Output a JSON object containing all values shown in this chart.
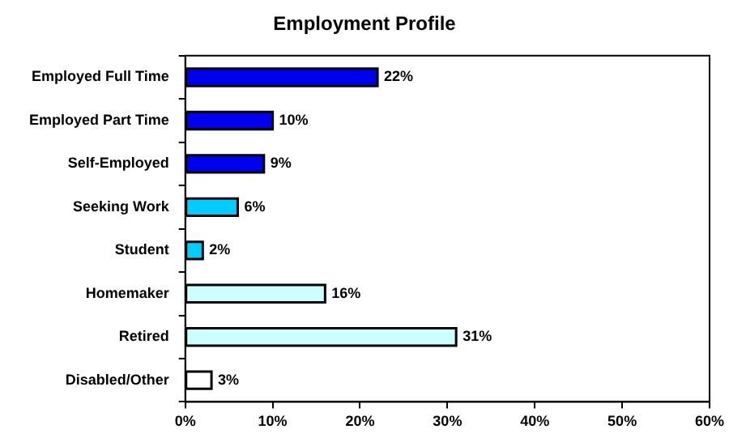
{
  "chart_data": {
    "type": "bar",
    "orientation": "horizontal",
    "title": "Employment Profile",
    "categories": [
      "Employed Full Time",
      "Employed Part Time",
      "Self-Employed",
      "Seeking Work",
      "Student",
      "Homemaker",
      "Retired",
      "Disabled/Other"
    ],
    "values": [
      22,
      10,
      9,
      6,
      2,
      16,
      31,
      3
    ],
    "colors": [
      "#0000ee",
      "#0000ee",
      "#0000ee",
      "#00ccff",
      "#00ccff",
      "#ccffff",
      "#ccffff",
      "#ffffff"
    ],
    "value_labels": [
      "22%",
      "10%",
      "9%",
      "6%",
      "2%",
      "16%",
      "31%",
      "3%"
    ],
    "xlim": [
      0,
      60
    ],
    "xticks": [
      {
        "value": 0,
        "label": "0%"
      },
      {
        "value": 10,
        "label": "10%"
      },
      {
        "value": 20,
        "label": "20%"
      },
      {
        "value": 30,
        "label": "30%"
      },
      {
        "value": 40,
        "label": "40%"
      },
      {
        "value": 50,
        "label": "50%"
      },
      {
        "value": 60,
        "label": "60%"
      }
    ],
    "grid": false,
    "legend": false
  }
}
